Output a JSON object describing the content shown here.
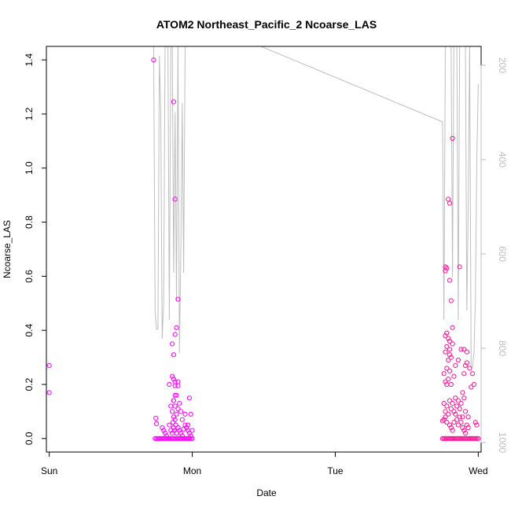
{
  "chart_data": {
    "type": "scatter",
    "title": "ATOM2 Northeast_Pacific_2 Ncoarse_LAS",
    "xlabel": "Date",
    "ylabel": "Ncoarse_LAS",
    "x_ticks": [
      "Sun",
      "Mon",
      "Tue",
      "Wed"
    ],
    "x_tick_values": [
      0,
      1,
      2,
      3
    ],
    "xlim": [
      -0.02,
      3.02
    ],
    "ylim": [
      -0.05,
      1.45
    ],
    "y_ticks": [
      0.0,
      0.2,
      0.4,
      0.6,
      0.8,
      1.0,
      1.2,
      1.4
    ],
    "y_tick_labels": [
      "0.0",
      "0.2",
      "0.4",
      "0.6",
      "0.8",
      "1.0",
      "1.2",
      "1.4"
    ],
    "y2_ticks": [
      200,
      400,
      600,
      800,
      1000
    ],
    "y2_tick_labels": [
      "200",
      "400",
      "600",
      "800",
      "1000"
    ],
    "y2lim": [
      1020,
      160
    ],
    "colors": {
      "points_day1": "#ff00ff",
      "points_day2": "#ff1493",
      "altitude_line": "#bebebe",
      "axis": "#000000",
      "axis_right": "#bebebe"
    },
    "series": [
      {
        "color_key": "points_day1",
        "x": [
          0.0,
          0.0,
          0.74,
          0.75,
          0.76,
          0.77,
          0.78,
          0.79,
          0.8,
          0.81,
          0.82,
          0.83,
          0.84,
          0.85,
          0.86,
          0.87,
          0.88,
          0.89,
          0.9,
          0.91,
          0.92,
          0.93,
          0.94,
          0.95,
          0.96,
          0.97,
          0.98,
          0.99,
          1.0,
          0.745,
          0.75,
          0.79,
          0.8,
          0.81,
          0.82,
          0.84,
          0.85,
          0.86,
          0.865,
          0.87,
          0.875,
          0.88,
          0.885,
          0.89,
          0.9,
          0.91,
          0.92,
          0.93,
          0.94,
          0.95,
          0.96,
          0.97,
          0.98,
          0.99,
          1.0,
          0.86,
          0.87,
          0.88,
          0.89,
          0.9,
          0.91,
          0.92,
          0.93,
          0.95,
          0.97,
          0.98,
          0.99,
          0.87,
          0.88,
          0.89,
          0.86,
          0.87,
          0.88,
          0.84,
          0.86,
          0.87,
          0.88,
          0.89,
          0.9,
          0.85,
          0.87,
          0.88,
          0.9,
          0.9,
          0.88,
          0.87,
          0.73
        ],
        "y": [
          0.27,
          0.17,
          0.0,
          0.0,
          0.0,
          0.0,
          0.0,
          0.0,
          0.0,
          0.0,
          0.0,
          0.0,
          0.0,
          0.0,
          0.0,
          0.0,
          0.0,
          0.0,
          0.0,
          0.0,
          0.0,
          0.0,
          0.0,
          0.0,
          0.0,
          0.0,
          0.0,
          0.0,
          0.0,
          0.075,
          0.055,
          0.04,
          0.03,
          0.02,
          0.01,
          0.05,
          0.03,
          0.02,
          0.06,
          0.04,
          0.03,
          0.07,
          0.05,
          0.02,
          0.04,
          0.03,
          0.02,
          0.01,
          0.035,
          0.05,
          0.04,
          0.03,
          0.02,
          0.01,
          0.03,
          0.1,
          0.08,
          0.12,
          0.09,
          0.11,
          0.13,
          0.1,
          0.07,
          0.09,
          0.05,
          0.15,
          0.09,
          0.14,
          0.21,
          0.16,
          0.23,
          0.22,
          0.195,
          0.2,
          0.35,
          0.31,
          0.385,
          0.41,
          0.21,
          0.12,
          0.14,
          0.16,
          0.515,
          0.195,
          0.885,
          1.245,
          1.4
        ]
      },
      {
        "color_key": "points_day2",
        "x": [
          2.75,
          2.76,
          2.77,
          2.78,
          2.79,
          2.8,
          2.81,
          2.82,
          2.83,
          2.84,
          2.85,
          2.86,
          2.87,
          2.88,
          2.89,
          2.9,
          2.91,
          2.92,
          2.93,
          2.94,
          2.95,
          2.96,
          2.97,
          2.98,
          2.99,
          3.0,
          2.75,
          2.76,
          2.77,
          2.78,
          2.8,
          2.81,
          2.82,
          2.83,
          2.84,
          2.85,
          2.86,
          2.87,
          2.88,
          2.89,
          2.9,
          2.91,
          2.92,
          2.93,
          2.98,
          2.99,
          2.76,
          2.77,
          2.78,
          2.79,
          2.8,
          2.81,
          2.82,
          2.83,
          2.84,
          2.85,
          2.86,
          2.87,
          2.88,
          2.89,
          2.9,
          2.91,
          2.93,
          2.95,
          2.76,
          2.77,
          2.78,
          2.79,
          2.8,
          2.81,
          2.83,
          2.84,
          2.86,
          2.88,
          2.9,
          2.92,
          2.94,
          2.96,
          2.77,
          2.78,
          2.79,
          2.8,
          2.81,
          2.82,
          2.77,
          2.78,
          2.79,
          2.8,
          2.82,
          2.9,
          2.91,
          2.92,
          2.77,
          2.78,
          2.81,
          2.87,
          2.8,
          2.79,
          2.82,
          2.8,
          2.77,
          2.89,
          2.97,
          2.8,
          2.78
        ],
        "y": [
          0.0,
          0.0,
          0.0,
          0.0,
          0.0,
          0.0,
          0.0,
          0.0,
          0.0,
          0.0,
          0.0,
          0.0,
          0.0,
          0.0,
          0.0,
          0.0,
          0.0,
          0.0,
          0.0,
          0.0,
          0.0,
          0.0,
          0.0,
          0.0,
          0.0,
          0.0,
          0.065,
          0.07,
          0.08,
          0.06,
          0.05,
          0.04,
          0.03,
          0.06,
          0.09,
          0.07,
          0.05,
          0.08,
          0.06,
          0.04,
          0.03,
          0.02,
          0.05,
          0.04,
          0.06,
          0.05,
          0.13,
          0.1,
          0.12,
          0.09,
          0.14,
          0.11,
          0.13,
          0.1,
          0.15,
          0.12,
          0.14,
          0.11,
          0.13,
          0.17,
          0.15,
          0.1,
          0.08,
          0.19,
          0.24,
          0.21,
          0.26,
          0.22,
          0.25,
          0.2,
          0.23,
          0.27,
          0.29,
          0.33,
          0.24,
          0.28,
          0.26,
          0.24,
          0.32,
          0.34,
          0.29,
          0.31,
          0.3,
          0.35,
          0.38,
          0.39,
          0.37,
          0.36,
          0.41,
          0.33,
          0.27,
          0.32,
          0.62,
          0.63,
          0.51,
          0.635,
          0.87,
          0.885,
          1.11,
          0.585,
          0.635,
          0.08,
          0.2,
          0.33,
          0.2
        ]
      }
    ],
    "altitude_line": {
      "x": [
        0.73,
        0.74,
        0.75,
        0.76,
        0.77,
        0.78,
        0.79,
        0.8,
        0.81,
        0.82,
        0.83,
        0.84,
        0.85,
        0.86,
        0.87,
        0.88,
        0.89,
        0.9,
        0.91,
        0.92,
        0.93,
        0.94,
        0.95,
        0.96,
        0.97,
        0.98,
        0.99,
        1.4,
        2.75,
        2.76,
        2.77,
        2.78,
        2.79,
        2.8,
        2.81,
        2.82,
        2.83,
        2.84,
        2.85,
        2.86,
        2.87,
        2.88,
        2.89,
        2.9,
        2.91,
        2.92,
        2.93,
        2.94,
        2.95,
        2.96,
        2.97,
        2.98,
        2.99,
        3.0
      ],
      "y": [
        150,
        720,
        760,
        760,
        180,
        300,
        780,
        700,
        150,
        160,
        150,
        740,
        150,
        150,
        640,
        300,
        700,
        150,
        810,
        600,
        280,
        640,
        150,
        150,
        150,
        150,
        150,
        150,
        320,
        740,
        150,
        150,
        150,
        150,
        150,
        650,
        120,
        150,
        150,
        740,
        150,
        150,
        150,
        150,
        150,
        720,
        500,
        150,
        840,
        840,
        810,
        700,
        400,
        240
      ]
    }
  }
}
